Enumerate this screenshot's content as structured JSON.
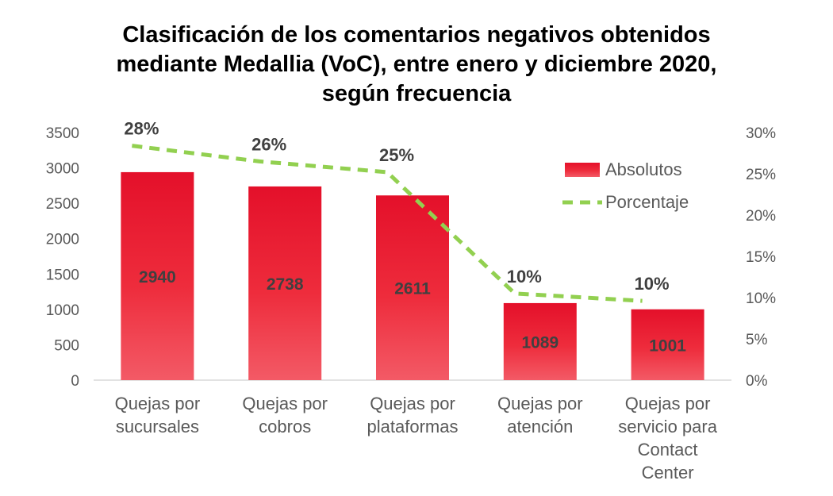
{
  "chart_data": {
    "type": "bar",
    "title_lines": [
      "Clasificación de los comentarios negativos obtenidos",
      "mediante Medallia (VoC), entre enero y diciembre 2020,",
      "según frecuencia"
    ],
    "categories": [
      [
        "Quejas por",
        "sucursales"
      ],
      [
        "Quejas por",
        "cobros"
      ],
      [
        "Quejas por",
        "plataformas"
      ],
      [
        "Quejas por",
        "atención"
      ],
      [
        "Quejas por",
        "servicio para",
        "Contact",
        "Center"
      ]
    ],
    "series": [
      {
        "name": "Absolutos",
        "type": "bar",
        "axis": "left",
        "color": "#e8192c",
        "values": [
          2940,
          2738,
          2611,
          1089,
          1001
        ],
        "labels": [
          "2940",
          "2738",
          "2611",
          "1089",
          "1001"
        ]
      },
      {
        "name": "Porcentaje",
        "type": "line",
        "axis": "right",
        "style": "dashed",
        "color": "#92d050",
        "values": [
          28.4,
          26.5,
          25.2,
          10.5,
          9.6
        ],
        "labels": [
          "28%",
          "26%",
          "25%",
          "10%",
          "10%"
        ]
      }
    ],
    "y_left": {
      "min": 0,
      "max": 3500,
      "ticks": [
        "0",
        "500",
        "1000",
        "1500",
        "2000",
        "2500",
        "3000",
        "3500"
      ]
    },
    "y_right": {
      "min": 0,
      "max": 30,
      "ticks": [
        "0%",
        "5%",
        "10%",
        "15%",
        "20%",
        "25%",
        "30%"
      ]
    },
    "legend_position": "top-right",
    "grid": false
  }
}
